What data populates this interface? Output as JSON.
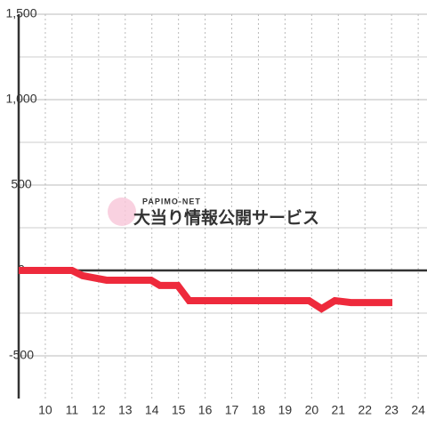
{
  "chart_data": {
    "type": "line",
    "x": [
      9,
      11,
      11.4,
      12.3,
      13.97,
      14.3,
      14.97,
      15.4,
      19.9,
      20.37,
      20.87,
      21.47,
      23.03
    ],
    "series": [
      {
        "color": "#ee2a3c",
        "values": [
          0,
          0,
          -31,
          -57,
          -57,
          -88,
          -88,
          -177,
          -177,
          -224,
          -177,
          -188,
          -188
        ]
      }
    ],
    "xlim": [
      9,
      24.33
    ],
    "xticks": [
      10,
      11,
      12,
      13,
      14,
      15,
      16,
      17,
      18,
      19,
      20,
      21,
      22,
      23,
      24
    ],
    "ylim": [
      -750,
      1500
    ],
    "yticks": [
      {
        "value": 1500,
        "label": "1,500"
      },
      {
        "value": 1000,
        "label": "1,000"
      },
      500,
      0,
      -500
    ],
    "y_minor_ticks": [
      1250,
      750,
      250,
      -250
    ],
    "grid": true,
    "watermark": {
      "brand": "PAPIMO-NET",
      "text": "大当り情報公開サービス",
      "color": "#f7c6d8"
    }
  }
}
